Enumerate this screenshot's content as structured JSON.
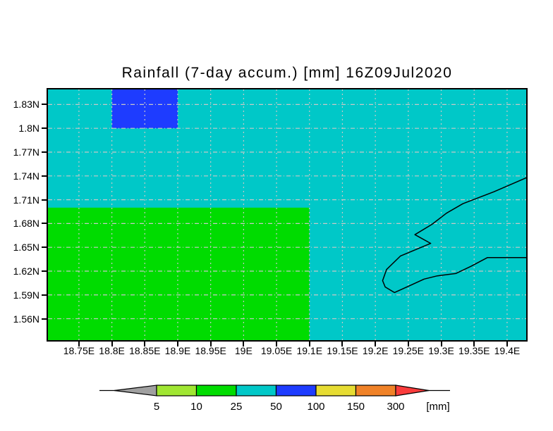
{
  "chart_data": {
    "type": "heatmap",
    "title": "Rainfall (7-day accum.) [mm] 16Z09Jul2020",
    "xlabel": "",
    "ylabel": "",
    "lon_range": [
      18.703,
      19.429
    ],
    "lat_range": [
      1.533,
      1.849
    ],
    "x_ticks": {
      "values": [
        18.75,
        18.8,
        18.85,
        18.9,
        18.95,
        19.0,
        19.05,
        19.1,
        19.15,
        19.2,
        19.25,
        19.3,
        19.35,
        19.4
      ],
      "labels": [
        "18.75E",
        "18.8E",
        "18.85E",
        "18.9E",
        "18.95E",
        "19E",
        "19.05E",
        "19.1E",
        "19.15E",
        "19.2E",
        "19.25E",
        "19.3E",
        "19.35E",
        "19.4E"
      ]
    },
    "y_ticks": {
      "values": [
        1.83,
        1.8,
        1.77,
        1.74,
        1.71,
        1.68,
        1.65,
        1.62,
        1.59,
        1.56
      ],
      "labels": [
        "1.83N",
        "1.8N",
        "1.77N",
        "1.74N",
        "1.71N",
        "1.68N",
        "1.65N",
        "1.62N",
        "1.59N",
        "1.56N"
      ]
    },
    "grid": true,
    "grid_color": "#C8C8C8",
    "background_fill": {
      "color": "#00C8C8",
      "value_range": "25-50 mm"
    },
    "regions": [
      {
        "name": "rain-10-25",
        "color": "#00DC00",
        "value_range": "10-25 mm",
        "lon": [
          18.703,
          19.1
        ],
        "lat": [
          1.533,
          1.7
        ]
      },
      {
        "name": "rain-50-100",
        "color": "#1E3CFF",
        "value_range": "50-100 mm",
        "lon": [
          18.8,
          18.9
        ],
        "lat": [
          1.8,
          1.849
        ]
      }
    ],
    "coastline": [
      [
        19.43,
        1.738
      ],
      [
        19.38,
        1.72
      ],
      [
        19.333,
        1.705
      ],
      [
        19.308,
        1.693
      ],
      [
        19.286,
        1.679
      ],
      [
        19.26,
        1.666
      ],
      [
        19.284,
        1.655
      ],
      [
        19.238,
        1.639
      ],
      [
        19.217,
        1.622
      ],
      [
        19.211,
        1.608
      ],
      [
        19.215,
        1.6
      ],
      [
        19.229,
        1.593
      ],
      [
        19.253,
        1.602
      ],
      [
        19.274,
        1.61
      ],
      [
        19.294,
        1.614
      ],
      [
        19.322,
        1.617
      ],
      [
        19.345,
        1.626
      ],
      [
        19.37,
        1.637
      ],
      [
        19.43,
        1.637
      ]
    ],
    "colorbar": {
      "tick_labels": [
        "5",
        "10",
        "25",
        "50",
        "100",
        "150",
        "300"
      ],
      "unit": "[mm]",
      "segments": [
        {
          "color": "#A0A0A0",
          "shape": "left-arrow",
          "range": "<5"
        },
        {
          "color": "#A0E632",
          "shape": "box",
          "range": "5-10"
        },
        {
          "color": "#00DC00",
          "shape": "box",
          "range": "10-25"
        },
        {
          "color": "#00C8C8",
          "shape": "box",
          "range": "25-50"
        },
        {
          "color": "#1E3CFF",
          "shape": "box",
          "range": "50-100"
        },
        {
          "color": "#E6DC32",
          "shape": "box",
          "range": "100-150"
        },
        {
          "color": "#F08228",
          "shape": "box",
          "range": "150-300"
        },
        {
          "color": "#FA3C3C",
          "shape": "right-arrow",
          "range": ">300"
        }
      ]
    }
  }
}
